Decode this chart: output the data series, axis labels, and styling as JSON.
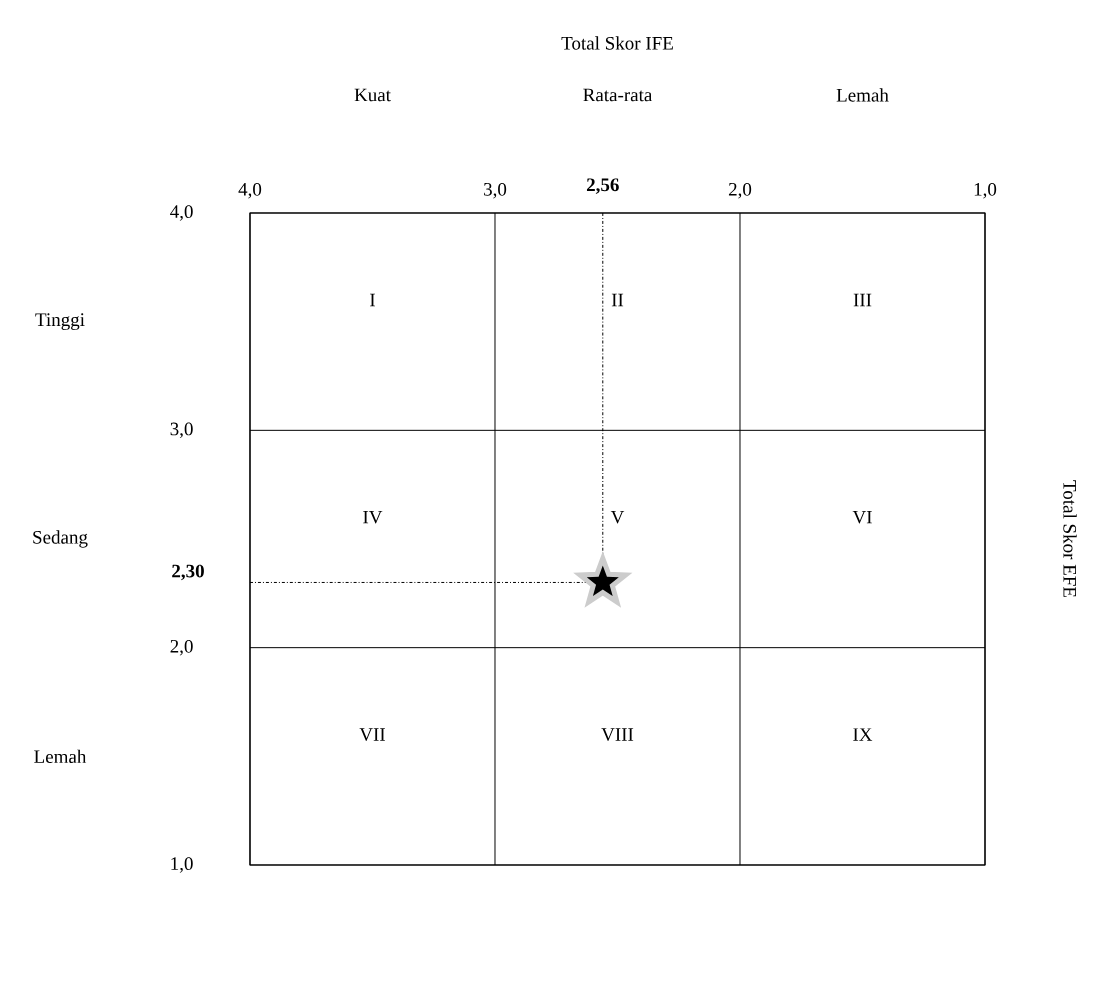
{
  "chart_data": {
    "type": "scatter",
    "title": "Total Skor IFE",
    "ylabel": "Total Skor EFE",
    "xlim": [
      4,
      1
    ],
    "ylim": [
      1,
      4
    ],
    "xticks": [
      {
        "value": 4,
        "label": "4,0"
      },
      {
        "value": 3,
        "label": "3,0"
      },
      {
        "value": 2,
        "label": "2,0"
      },
      {
        "value": 1,
        "label": "1,0"
      }
    ],
    "yticks": [
      {
        "value": 1,
        "label": "1,0"
      },
      {
        "value": 2,
        "label": "2,0"
      },
      {
        "value": 3,
        "label": "3,0"
      },
      {
        "value": 4,
        "label": "4,0"
      }
    ],
    "grid": true,
    "marker": "star",
    "x": [
      2.56
    ],
    "values": [
      2.3
    ],
    "color": "#000000",
    "ref_lines": [
      {
        "axis": "x",
        "value": 2.56,
        "label": "**2,56**",
        "line_style": "dashdot"
      },
      {
        "axis": "y",
        "value": 2.3,
        "label": "**2,30**",
        "line_style": "dashdot"
      }
    ],
    "annotations": [
      "Kuat",
      "Rata-rata",
      "Lemah",
      "Tinggi",
      "Sedang",
      "Lemah",
      "I",
      "II",
      "III",
      "IV",
      "V",
      "VI",
      "VII",
      "VIII",
      "IX"
    ]
  }
}
